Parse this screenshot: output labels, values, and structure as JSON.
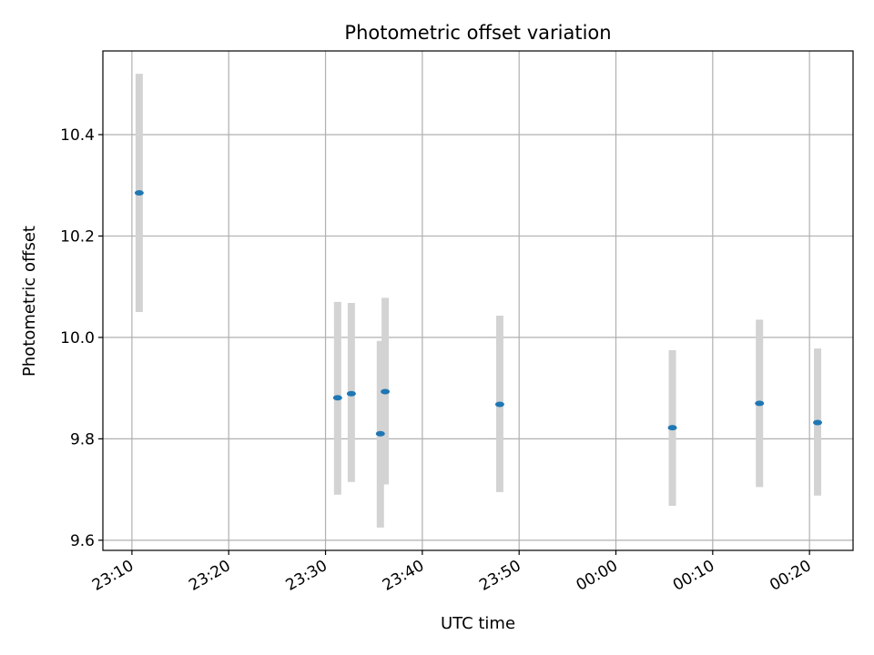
{
  "chart_data": {
    "type": "scatter",
    "title": "Photometric offset variation",
    "xlabel": "UTC time",
    "ylabel": "Photometric offset",
    "x_ticks": [
      "23:10",
      "23:20",
      "23:30",
      "23:40",
      "23:50",
      "00:00",
      "00:10",
      "00:20"
    ],
    "y_ticks": [
      "9.6",
      "9.8",
      "10.0",
      "10.2",
      "10.4"
    ],
    "xlim": [
      "23:07",
      "00:24:30"
    ],
    "ylim": [
      9.58,
      10.565
    ],
    "grid": true,
    "error_bar_color": "#d3d3d3",
    "marker_color": "#1f77b4",
    "series": [
      {
        "x": [
          "23:10:45",
          "23:31:15",
          "23:32:40",
          "23:35:40",
          "23:36:10",
          "23:48:00",
          "00:05:50",
          "00:14:50",
          "00:20:50"
        ],
        "y": [
          10.285,
          9.881,
          9.889,
          9.81,
          9.893,
          9.868,
          9.822,
          9.87,
          9.832
        ],
        "yerr_low": [
          10.05,
          9.69,
          9.715,
          9.625,
          9.71,
          9.695,
          9.668,
          9.705,
          9.688
        ],
        "yerr_high": [
          10.52,
          10.07,
          10.068,
          9.993,
          10.078,
          10.043,
          9.975,
          10.035,
          9.978
        ]
      }
    ]
  }
}
